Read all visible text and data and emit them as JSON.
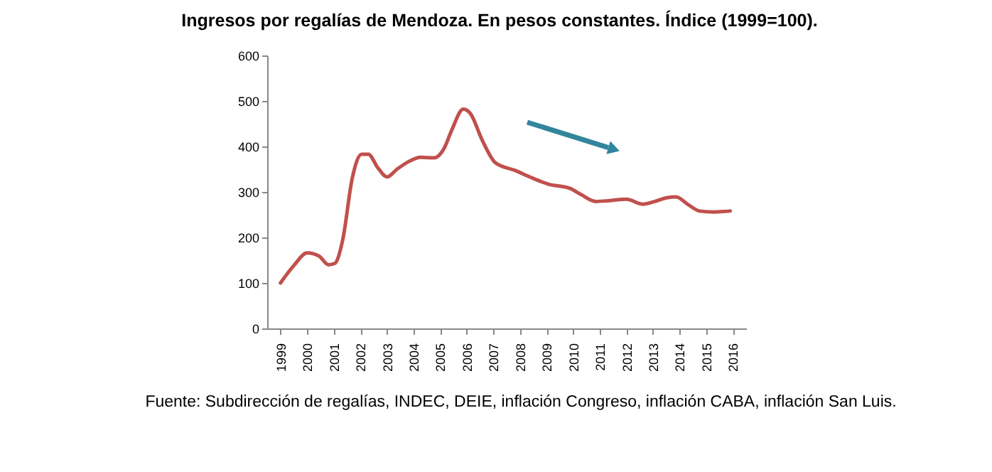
{
  "chart_data": {
    "type": "line",
    "title": "Ingresos por regalías de Mendoza. En pesos constantes. Índice (1999=100).",
    "x": [
      1999.0,
      1999.5,
      2000.0,
      2000.45,
      2000.8,
      2001.04,
      2001.34,
      2001.7,
      2002.05,
      2002.3,
      2002.67,
      2003.0,
      2003.38,
      2003.83,
      2004.27,
      2004.77,
      2005.16,
      2005.43,
      2005.87,
      2006.14,
      2006.58,
      2007.08,
      2007.83,
      2008.45,
      2009.07,
      2009.87,
      2010.3,
      2010.85,
      2011.38,
      2012.0,
      2012.62,
      2013.07,
      2013.51,
      2013.87,
      2014.3,
      2014.75,
      2015.28,
      2015.9
    ],
    "series": [
      {
        "color": "#c0504d",
        "values": [
          100,
          138,
          166,
          159,
          140,
          143,
          195,
          331,
          383,
          383,
          352,
          333,
          350,
          367,
          376,
          375,
          397,
          435,
          482,
          472,
          414,
          364,
          347,
          331,
          317,
          308,
          294,
          279,
          281,
          284,
          273,
          279,
          287,
          289,
          273,
          258,
          256,
          258
        ]
      }
    ],
    "xlim": [
      1998.5,
      2016.5
    ],
    "xticks": [
      1999,
      2000,
      2001,
      2002,
      2003,
      2004,
      2005,
      2006,
      2007,
      2008,
      2009,
      2010,
      2011,
      2012,
      2013,
      2014,
      2015,
      2016
    ],
    "ylim": [
      0,
      600
    ],
    "yticks": [
      0,
      100,
      200,
      300,
      400,
      500,
      600
    ],
    "grid": false,
    "marker": "none",
    "line_style": "solid",
    "legend": false,
    "annotations": [
      "Fuente: Subdirección de regalías, INDEC, DEIE, inflación Congreso, inflación CABA, inflación San Luis."
    ]
  }
}
